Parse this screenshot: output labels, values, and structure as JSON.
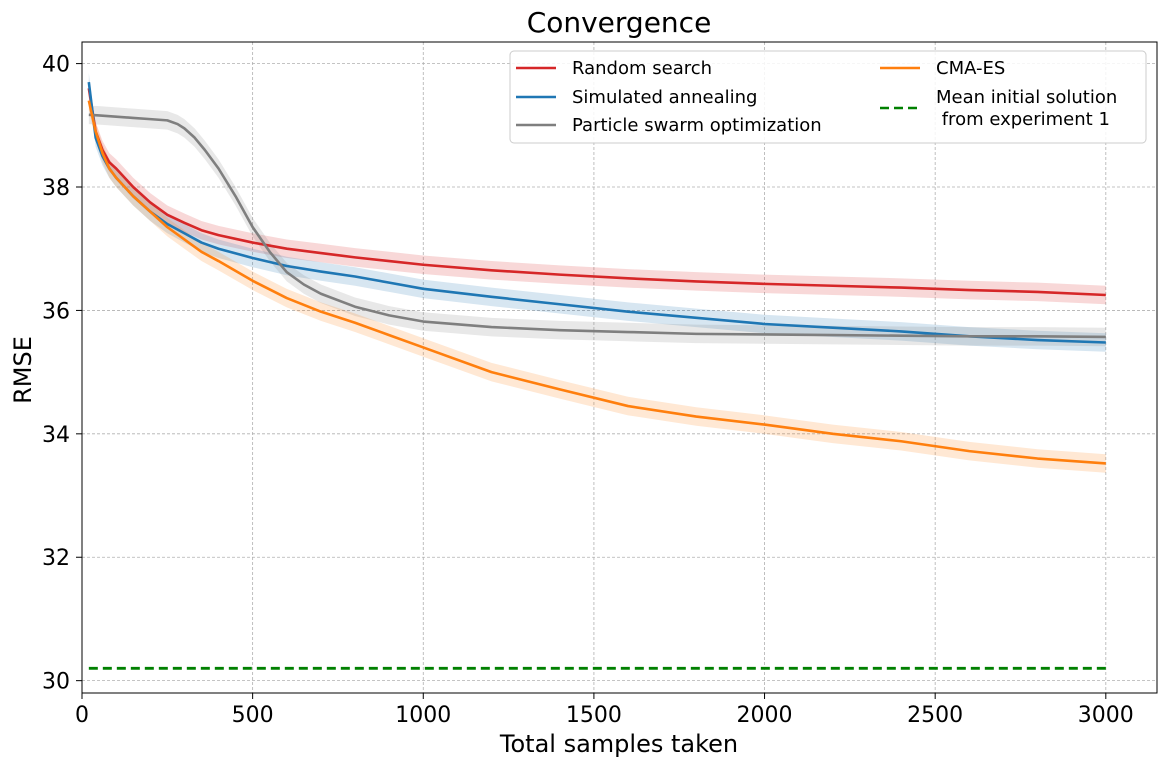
{
  "chart_data": {
    "type": "line",
    "title": "Convergence",
    "xlabel": "Total samples taken",
    "ylabel": "RMSE",
    "xlim": [
      0,
      3150
    ],
    "ylim": [
      29.8,
      40.35
    ],
    "xticks": [
      0,
      500,
      1000,
      1500,
      2000,
      2500,
      3000
    ],
    "yticks": [
      30,
      32,
      34,
      36,
      38,
      40
    ],
    "grid": true,
    "legend": {
      "position": "top-right",
      "columns": 2
    },
    "series": [
      {
        "name": "Random search",
        "color": "#d62728",
        "band": 0.15,
        "x": [
          20,
          40,
          60,
          80,
          100,
          150,
          200,
          250,
          300,
          350,
          400,
          500,
          600,
          700,
          800,
          900,
          1000,
          1200,
          1400,
          1600,
          1800,
          2000,
          2200,
          2400,
          2600,
          2800,
          3000
        ],
        "y": [
          39.6,
          38.9,
          38.6,
          38.4,
          38.3,
          38.0,
          37.75,
          37.55,
          37.42,
          37.3,
          37.22,
          37.1,
          37.0,
          36.93,
          36.86,
          36.8,
          36.74,
          36.65,
          36.58,
          36.52,
          36.47,
          36.43,
          36.4,
          36.37,
          36.33,
          36.3,
          36.25
        ]
      },
      {
        "name": "Simulated annealing",
        "color": "#1f77b4",
        "band": 0.15,
        "x": [
          20,
          40,
          60,
          80,
          100,
          150,
          200,
          250,
          300,
          350,
          400,
          500,
          600,
          700,
          800,
          900,
          1000,
          1200,
          1400,
          1600,
          1800,
          2000,
          2200,
          2400,
          2600,
          2800,
          3000
        ],
        "y": [
          39.7,
          38.8,
          38.5,
          38.3,
          38.15,
          37.85,
          37.6,
          37.4,
          37.25,
          37.1,
          37.0,
          36.85,
          36.72,
          36.63,
          36.55,
          36.45,
          36.35,
          36.22,
          36.1,
          35.98,
          35.88,
          35.78,
          35.72,
          35.66,
          35.58,
          35.52,
          35.48
        ]
      },
      {
        "name": "Particle swarm optimization",
        "color": "#7f7f7f",
        "band": 0.15,
        "x": [
          20,
          50,
          100,
          150,
          200,
          250,
          280,
          300,
          330,
          360,
          400,
          450,
          500,
          550,
          600,
          650,
          700,
          800,
          900,
          1000,
          1200,
          1400,
          1600,
          1800,
          2000,
          2200,
          2400,
          2600,
          2800,
          3000
        ],
        "y": [
          39.17,
          39.16,
          39.14,
          39.12,
          39.1,
          39.08,
          39.02,
          38.95,
          38.8,
          38.6,
          38.3,
          37.85,
          37.35,
          36.95,
          36.62,
          36.42,
          36.27,
          36.06,
          35.92,
          35.82,
          35.73,
          35.68,
          35.65,
          35.62,
          35.61,
          35.6,
          35.59,
          35.58,
          35.58,
          35.57
        ]
      },
      {
        "name": "CMA-ES",
        "color": "#ff7f0e",
        "band": 0.15,
        "x": [
          20,
          40,
          60,
          80,
          100,
          150,
          200,
          250,
          300,
          350,
          400,
          500,
          600,
          700,
          800,
          900,
          1000,
          1200,
          1400,
          1600,
          1800,
          2000,
          2200,
          2400,
          2600,
          2800,
          3000
        ],
        "y": [
          39.4,
          38.9,
          38.55,
          38.3,
          38.15,
          37.85,
          37.6,
          37.35,
          37.15,
          36.95,
          36.8,
          36.48,
          36.2,
          35.98,
          35.8,
          35.6,
          35.4,
          35.0,
          34.72,
          34.45,
          34.28,
          34.15,
          34.0,
          33.88,
          33.72,
          33.6,
          33.52
        ]
      },
      {
        "name": "Mean initial solution\n from experiment 1",
        "color": "#008000",
        "dashed": true,
        "x": [
          20,
          3000
        ],
        "y": [
          30.2,
          30.2
        ]
      }
    ]
  }
}
